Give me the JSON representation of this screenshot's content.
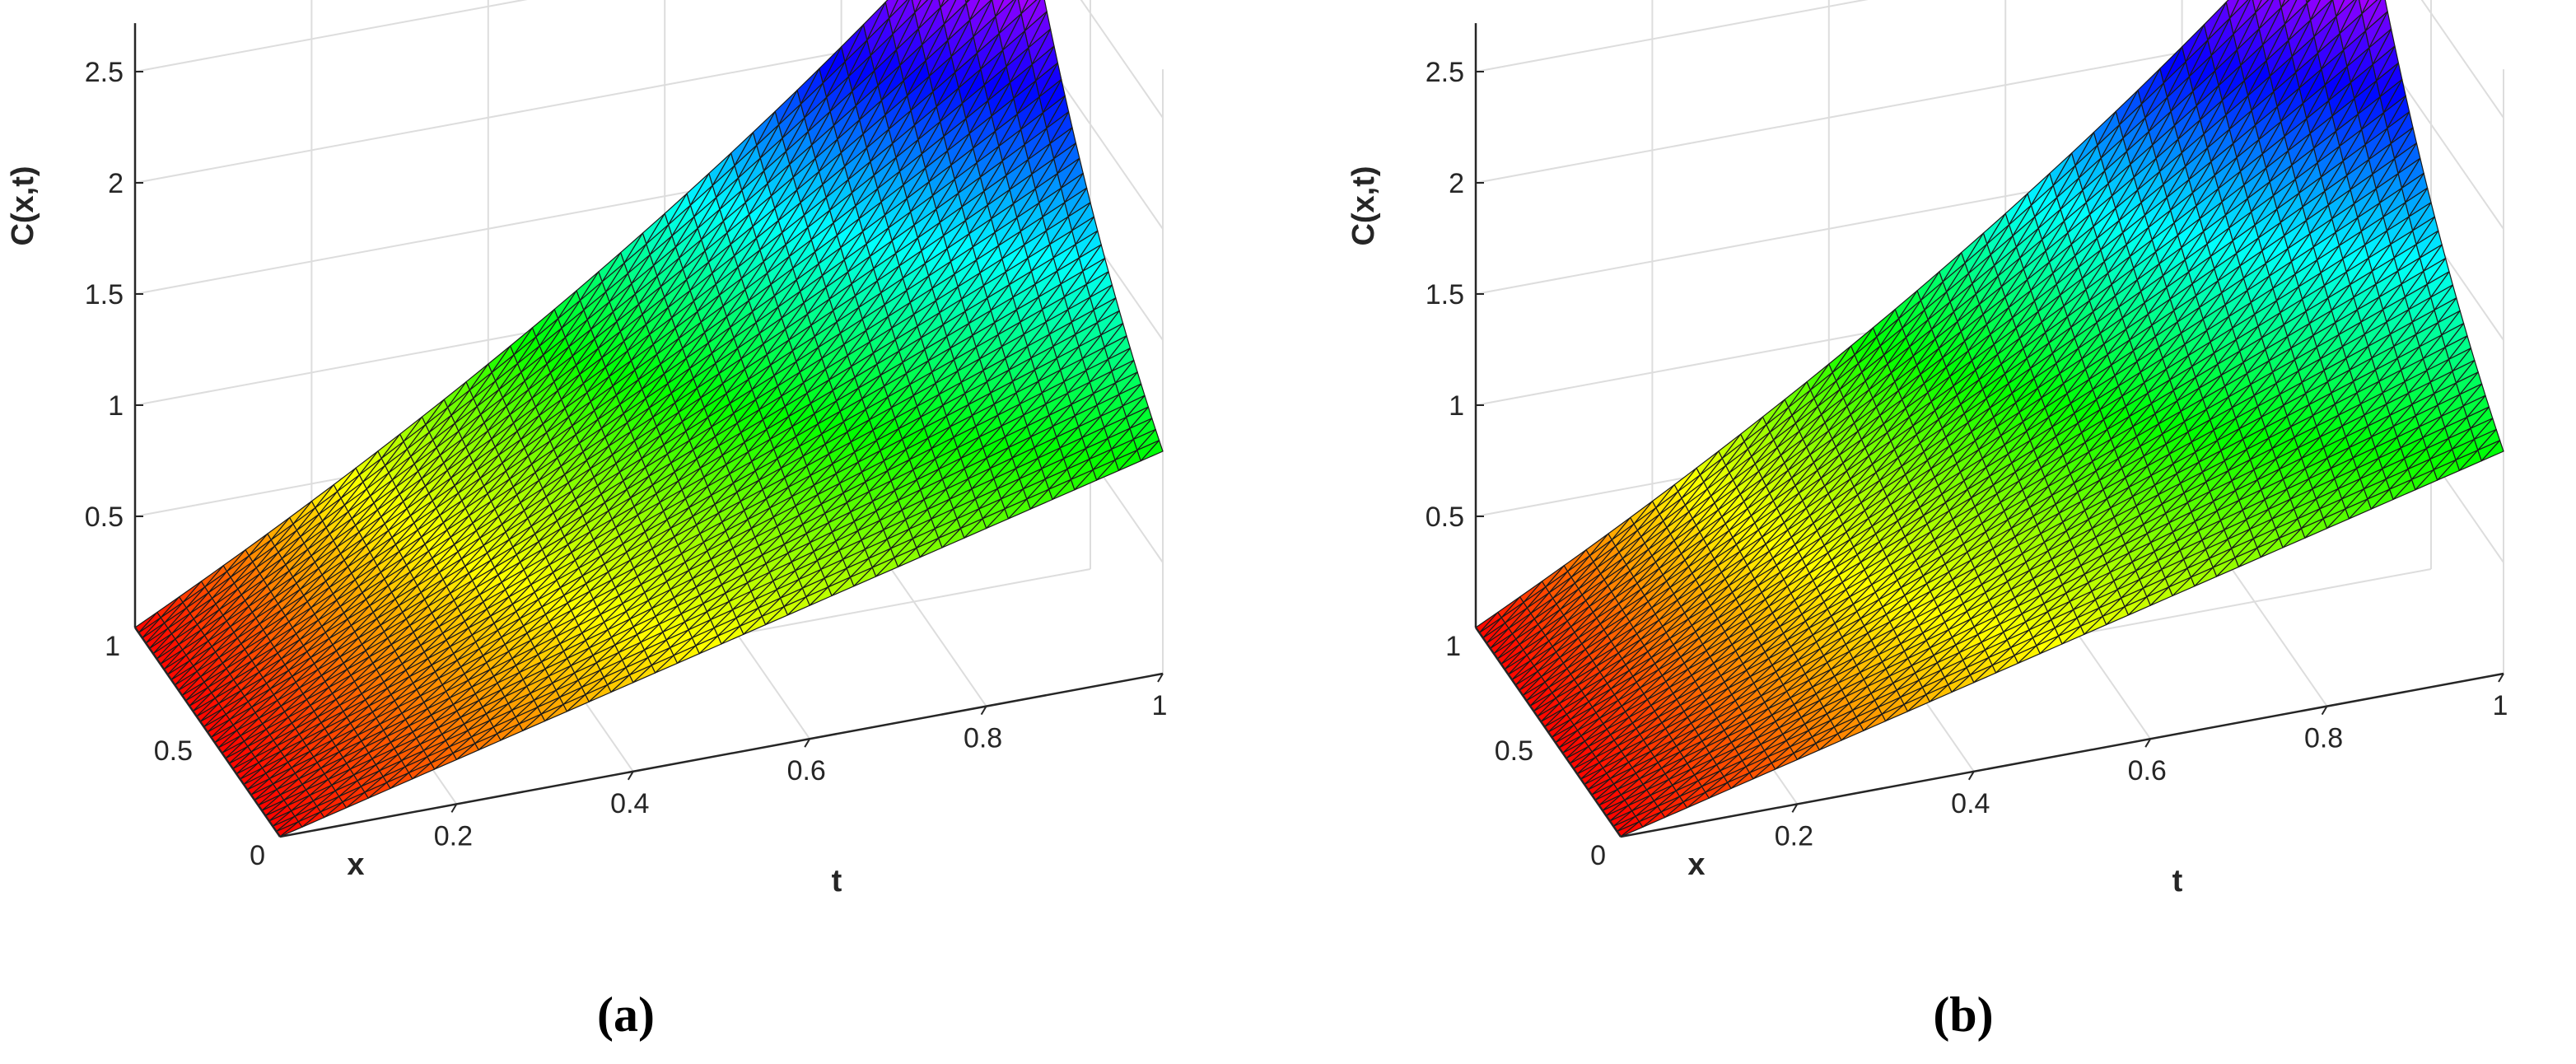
{
  "chart_data": [
    {
      "type": "surface3d",
      "panel": "(a)",
      "xlabel": "x",
      "ylabel": "t",
      "zlabel": "C(x,t)",
      "x_range": [
        0,
        1
      ],
      "t_range": [
        0,
        1
      ],
      "z_range": [
        0,
        2.718
      ],
      "x_ticks": [
        "0",
        "0.5",
        "1"
      ],
      "t_ticks": [
        "0.2",
        "0.4",
        "0.6",
        "0.8",
        "1"
      ],
      "z_ticks": [
        "0.5",
        "1",
        "1.5",
        "2",
        "2.5"
      ],
      "corner_values": {
        "x0_t0": 0.0,
        "x1_t0": 0.0,
        "x0_t1": 1.0,
        "x1_t1": 2.718
      },
      "colormap": "hsv",
      "grid": true,
      "mesh_divisions": 40
    },
    {
      "type": "surface3d",
      "panel": "(b)",
      "xlabel": "x",
      "ylabel": "t",
      "zlabel": "C(x,t)",
      "x_range": [
        0,
        1
      ],
      "t_range": [
        0,
        1
      ],
      "z_range": [
        0,
        2.718
      ],
      "x_ticks": [
        "0",
        "0.5",
        "1"
      ],
      "t_ticks": [
        "0.2",
        "0.4",
        "0.6",
        "0.8",
        "1"
      ],
      "z_ticks": [
        "0.5",
        "1",
        "1.5",
        "2",
        "2.5"
      ],
      "corner_values": {
        "x0_t0": 0.0,
        "x1_t0": 0.0,
        "x0_t1": 1.0,
        "x1_t1": 2.718
      },
      "colormap": "hsv",
      "grid": true,
      "mesh_divisions": 40
    }
  ],
  "captions": [
    "(a)",
    "(b)"
  ]
}
